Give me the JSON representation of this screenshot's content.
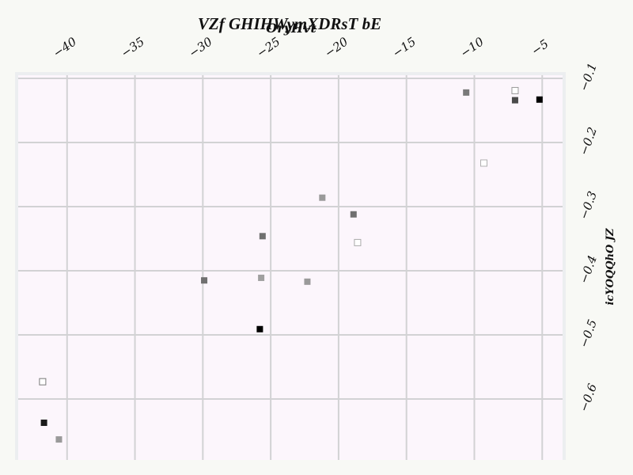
{
  "chart_data": {
    "type": "scatter",
    "title": "VZf GHIHWymXDRsT bE",
    "xlabel": "OryHvt",
    "ylabel": "icYOQQhO JZ",
    "xlim": [
      -43.6,
      -3.5
    ],
    "ylim": [
      -0.095,
      -0.695
    ],
    "x_axis_position": "top",
    "y_axis_position": "right",
    "grid": true,
    "x_ticks": [
      -40,
      -35,
      -30,
      -25,
      -20,
      -15,
      -10,
      -5
    ],
    "y_ticks": [
      -0.1,
      -0.2,
      -0.3,
      -0.4,
      -0.5,
      -0.6
    ],
    "x_tick_labels": [
      "−40",
      "−35",
      "−30",
      "−25",
      "−20",
      "−15",
      "−10",
      "−5"
    ],
    "y_tick_labels": [
      "−0.1",
      "−0.2",
      "−0.3",
      "−0.4",
      "−0.5",
      "−0.6"
    ],
    "colors": {
      "plot_background": "#fcf6fc",
      "grid": "#d2d2d4",
      "frame": "#eceef0"
    },
    "points": [
      {
        "x": -10.6,
        "y": -0.122,
        "color": "#7a7a7a",
        "filled": true
      },
      {
        "x": -7.0,
        "y": -0.119,
        "color": "#9a9a9a",
        "filled": false
      },
      {
        "x": -7.0,
        "y": -0.134,
        "color": "#4a4a4a",
        "filled": true
      },
      {
        "x": -5.2,
        "y": -0.133,
        "color": "#000000",
        "filled": true
      },
      {
        "x": -9.3,
        "y": -0.232,
        "color": "#b0b0b0",
        "filled": false
      },
      {
        "x": -21.2,
        "y": -0.286,
        "color": "#9a9a9a",
        "filled": true
      },
      {
        "x": -18.9,
        "y": -0.312,
        "color": "#707070",
        "filled": true
      },
      {
        "x": -25.6,
        "y": -0.346,
        "color": "#707070",
        "filled": true
      },
      {
        "x": -18.6,
        "y": -0.356,
        "color": "#aaaaaa",
        "filled": false
      },
      {
        "x": -29.9,
        "y": -0.415,
        "color": "#707070",
        "filled": true
      },
      {
        "x": -25.7,
        "y": -0.411,
        "color": "#a0a0a0",
        "filled": true
      },
      {
        "x": -22.3,
        "y": -0.417,
        "color": "#9a9a9a",
        "filled": true
      },
      {
        "x": -25.8,
        "y": -0.491,
        "color": "#000000",
        "filled": true
      },
      {
        "x": -41.8,
        "y": -0.573,
        "color": "#7a7a7a",
        "filled": false
      },
      {
        "x": -41.7,
        "y": -0.637,
        "color": "#1a1a1a",
        "filled": true
      },
      {
        "x": -40.6,
        "y": -0.663,
        "color": "#9a9a9a",
        "filled": true
      }
    ]
  }
}
